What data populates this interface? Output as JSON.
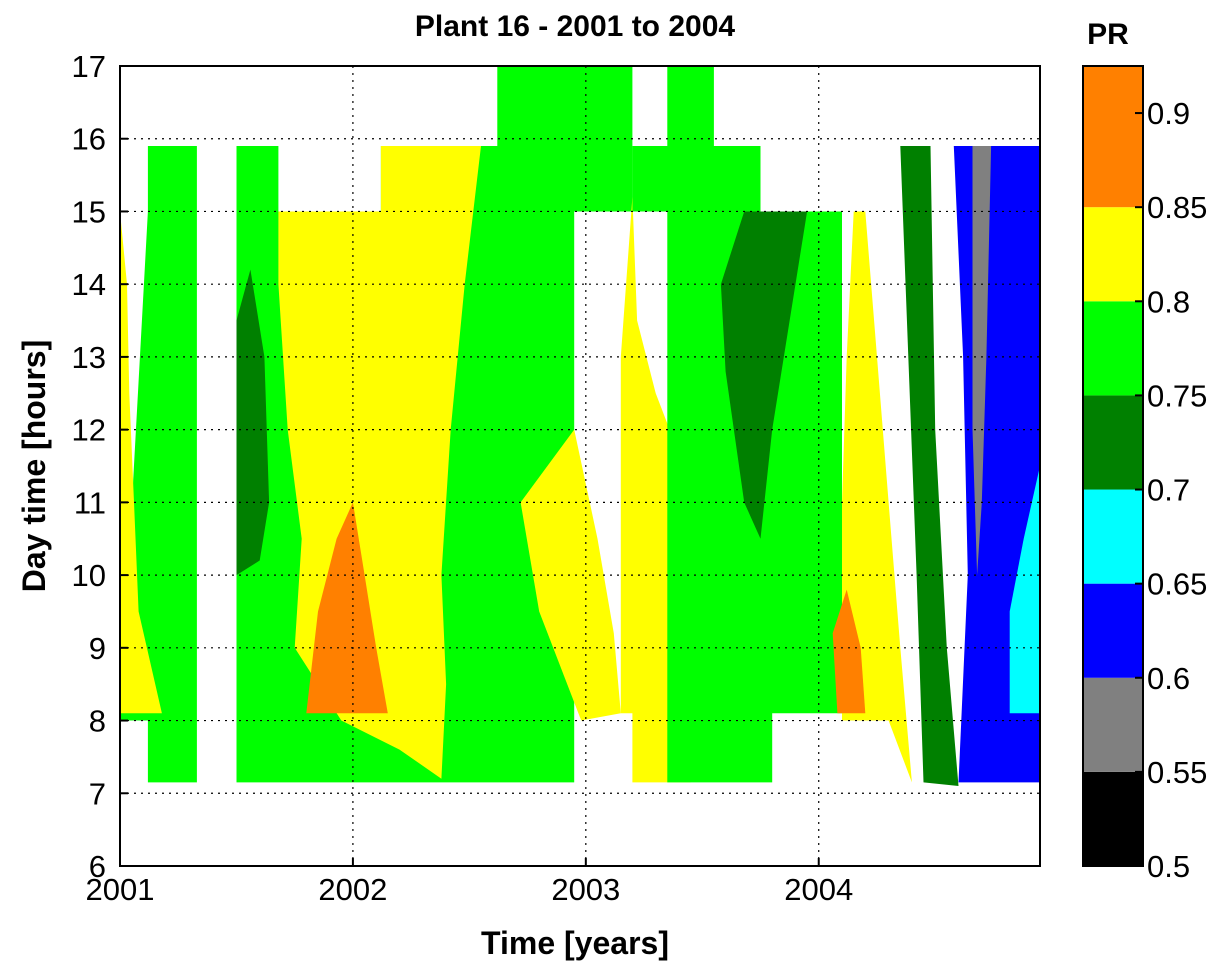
{
  "chart_data": {
    "type": "heatmap",
    "title": "Plant 16 - 2001 to 2004",
    "xlabel": "Time  [years]",
    "ylabel": "Day time  [hours]",
    "xlim": [
      2001,
      2004.95
    ],
    "ylim": [
      6,
      17
    ],
    "xticks": [
      "2001",
      "2002",
      "2003",
      "2004"
    ],
    "yticks": [
      "6",
      "7",
      "8",
      "9",
      "10",
      "11",
      "12",
      "13",
      "14",
      "15",
      "16",
      "17"
    ],
    "grid": "dotted",
    "colorbar": {
      "label": "PR",
      "range": [
        0.5,
        0.925
      ],
      "ticks": [
        "0.5",
        "0.55",
        "0.6",
        "0.65",
        "0.7",
        "0.75",
        "0.8",
        "0.85",
        "0.9"
      ],
      "bins": [
        {
          "min": 0.5,
          "max": 0.55,
          "color": "#000000"
        },
        {
          "min": 0.55,
          "max": 0.6,
          "color": "#808080"
        },
        {
          "min": 0.6,
          "max": 0.65,
          "color": "#0000ff"
        },
        {
          "min": 0.65,
          "max": 0.7,
          "color": "#00ffff"
        },
        {
          "min": 0.7,
          "max": 0.75,
          "color": "#008000"
        },
        {
          "min": 0.75,
          "max": 0.8,
          "color": "#00ff00"
        },
        {
          "min": 0.8,
          "max": 0.85,
          "color": "#ffff00"
        },
        {
          "min": 0.85,
          "max": 0.925,
          "color": "#ff8000"
        }
      ]
    },
    "regions": [
      {
        "level": "0.8",
        "color": "#00ff00",
        "points": [
          [
            2001,
            8
          ],
          [
            2001.12,
            8
          ],
          [
            2001.12,
            7.15
          ],
          [
            2001.33,
            7.15
          ],
          [
            2001.33,
            15.9
          ],
          [
            2001.12,
            15.9
          ],
          [
            2001.12,
            15
          ]
        ]
      },
      {
        "level": "0.85",
        "color": "#ffff00",
        "points": [
          [
            2001,
            8.1
          ],
          [
            2001.18,
            8.1
          ],
          [
            2001.08,
            9.5
          ],
          [
            2001.06,
            11
          ],
          [
            2001.04,
            12.5
          ],
          [
            2001.03,
            14
          ],
          [
            2001,
            15
          ]
        ]
      },
      {
        "level": "0.8",
        "color": "#00ff00",
        "points": [
          [
            2001.5,
            7.15
          ],
          [
            2002.95,
            7.15
          ],
          [
            2002.95,
            15
          ],
          [
            2003.2,
            15
          ],
          [
            2003.2,
            17
          ],
          [
            2002.62,
            17
          ],
          [
            2002.62,
            15.9
          ],
          [
            2002.12,
            15.9
          ],
          [
            2002.12,
            15
          ],
          [
            2001.68,
            15
          ],
          [
            2001.68,
            15.9
          ],
          [
            2001.5,
            15.9
          ]
        ]
      },
      {
        "level": "0.85",
        "color": "#ffff00",
        "points": [
          [
            2001.68,
            15
          ],
          [
            2002.12,
            15
          ],
          [
            2002.12,
            15.9
          ],
          [
            2002.55,
            15.9
          ],
          [
            2002.48,
            14
          ],
          [
            2002.42,
            12
          ],
          [
            2002.38,
            10
          ],
          [
            2002.4,
            8.5
          ],
          [
            2002.38,
            7.2
          ],
          [
            2002.2,
            7.6
          ],
          [
            2001.95,
            8
          ],
          [
            2001.75,
            9
          ],
          [
            2001.78,
            10.5
          ],
          [
            2001.72,
            12
          ],
          [
            2001.68,
            14
          ]
        ]
      },
      {
        "level": "0.9",
        "color": "#ff8000",
        "points": [
          [
            2001.8,
            8.1
          ],
          [
            2002.15,
            8.1
          ],
          [
            2002.1,
            9
          ],
          [
            2002.05,
            10
          ],
          [
            2002,
            11
          ],
          [
            2001.93,
            10.5
          ],
          [
            2001.85,
            9.5
          ]
        ]
      },
      {
        "level": "0.75",
        "color": "#008000",
        "points": [
          [
            2001.5,
            13.5
          ],
          [
            2001.56,
            14.2
          ],
          [
            2001.62,
            13
          ],
          [
            2001.64,
            11
          ],
          [
            2001.6,
            10.2
          ],
          [
            2001.5,
            10
          ]
        ]
      },
      {
        "level": "0.85",
        "color": "#ffff00",
        "points": [
          [
            2002.72,
            11
          ],
          [
            2002.95,
            12
          ],
          [
            2003.05,
            10.5
          ],
          [
            2003.12,
            9.2
          ],
          [
            2003.15,
            8.1
          ],
          [
            2002.98,
            8
          ],
          [
            2002.8,
            9.5
          ]
        ]
      },
      {
        "level": "0.85",
        "color": "#ffff00",
        "points": [
          [
            2003.2,
            7.15
          ],
          [
            2003.45,
            7.15
          ],
          [
            2003.55,
            8.5
          ],
          [
            2003.5,
            10
          ],
          [
            2003.42,
            11.5
          ],
          [
            2003.3,
            12.5
          ],
          [
            2003.22,
            13.5
          ],
          [
            2003.2,
            15.2
          ],
          [
            2003.15,
            13
          ],
          [
            2003.15,
            8.1
          ],
          [
            2003.2,
            8.1
          ]
        ]
      },
      {
        "level": "0.8",
        "color": "#00ff00",
        "points": [
          [
            2003.35,
            7.15
          ],
          [
            2003.8,
            7.15
          ],
          [
            2003.8,
            8.1
          ],
          [
            2004.1,
            8.1
          ],
          [
            2004.1,
            15
          ],
          [
            2003.75,
            15
          ],
          [
            2003.75,
            15.9
          ],
          [
            2003.55,
            15.9
          ],
          [
            2003.55,
            17
          ],
          [
            2003.35,
            17
          ],
          [
            2003.35,
            15.9
          ],
          [
            2003.2,
            15.9
          ],
          [
            2003.2,
            15
          ],
          [
            2003.35,
            15
          ]
        ]
      },
      {
        "level": "0.75",
        "color": "#008000",
        "points": [
          [
            2003.68,
            15
          ],
          [
            2003.95,
            15
          ],
          [
            2003.8,
            12
          ],
          [
            2003.75,
            10.5
          ],
          [
            2003.68,
            11
          ],
          [
            2003.6,
            12.8
          ],
          [
            2003.58,
            14
          ]
        ]
      },
      {
        "level": "0.85",
        "color": "#ffff00",
        "points": [
          [
            2004.1,
            8
          ],
          [
            2004.3,
            8
          ],
          [
            2004.4,
            7.15
          ],
          [
            2004.35,
            9
          ],
          [
            2004.3,
            11
          ],
          [
            2004.25,
            13
          ],
          [
            2004.2,
            15
          ],
          [
            2004.15,
            15
          ],
          [
            2004.12,
            13
          ],
          [
            2004.1,
            11
          ]
        ]
      },
      {
        "level": "0.9",
        "color": "#ff8000",
        "points": [
          [
            2004.08,
            8.1
          ],
          [
            2004.2,
            8.1
          ],
          [
            2004.18,
            9
          ],
          [
            2004.12,
            9.8
          ],
          [
            2004.06,
            9.2
          ]
        ]
      },
      {
        "level": "0.75",
        "color": "#008000",
        "points": [
          [
            2004.35,
            15.9
          ],
          [
            2004.48,
            15.9
          ],
          [
            2004.5,
            12
          ],
          [
            2004.55,
            9
          ],
          [
            2004.6,
            7.1
          ],
          [
            2004.45,
            7.15
          ],
          [
            2004.42,
            10
          ]
        ]
      },
      {
        "level": "0.6",
        "color": "#0000ff",
        "points": [
          [
            2004.58,
            15.9
          ],
          [
            2004.95,
            15.9
          ],
          [
            2004.95,
            7.15
          ],
          [
            2004.6,
            7.15
          ],
          [
            2004.64,
            10
          ],
          [
            2004.62,
            13
          ]
        ]
      },
      {
        "level": "0.65",
        "color": "#00ffff",
        "points": [
          [
            2004.82,
            8.1
          ],
          [
            2004.95,
            8.1
          ],
          [
            2004.95,
            11.5
          ],
          [
            2004.88,
            10.5
          ],
          [
            2004.82,
            9.5
          ]
        ]
      },
      {
        "level": "0.55",
        "color": "#808080",
        "points": [
          [
            2004.66,
            15.9
          ],
          [
            2004.74,
            15.9
          ],
          [
            2004.72,
            13
          ],
          [
            2004.7,
            11
          ],
          [
            2004.68,
            10
          ],
          [
            2004.66,
            12
          ]
        ]
      }
    ]
  }
}
